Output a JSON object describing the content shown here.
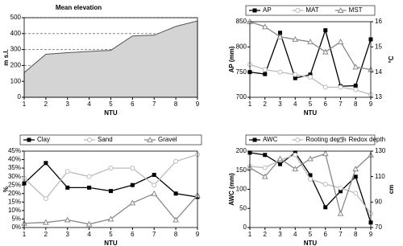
{
  "chart_data": [
    {
      "type": "area",
      "title": "Mean elevation",
      "xlabel": "NTU",
      "ylabel": "m s.l.",
      "x": [
        1,
        2,
        3,
        4,
        5,
        6,
        7,
        8,
        9
      ],
      "xlim": [
        1,
        9
      ],
      "xticks": [
        1,
        2,
        3,
        4,
        5,
        6,
        7,
        8,
        9
      ],
      "ylim": [
        0,
        500
      ],
      "yticks": [
        0,
        100,
        200,
        300,
        400,
        500
      ],
      "grid": true,
      "series": [
        {
          "name": "Mean elevation",
          "color": "#d4d4d4",
          "values": [
            155,
            270,
            280,
            288,
            295,
            385,
            390,
            445,
            480
          ]
        }
      ]
    },
    {
      "type": "line",
      "xlabel": "NTU",
      "ylabel": "AP (mm)",
      "y2label": "°C",
      "x": [
        1,
        2,
        3,
        4,
        5,
        6,
        7,
        8,
        9
      ],
      "xlim": [
        1,
        9
      ],
      "xticks": [
        1,
        2,
        3,
        4,
        5,
        6,
        7,
        8,
        9
      ],
      "ylim": [
        700,
        850
      ],
      "yticks": [
        700,
        750,
        800,
        850
      ],
      "y2lim": [
        13,
        16
      ],
      "y2ticks": [
        13,
        14,
        15,
        16
      ],
      "series": [
        {
          "name": "AP",
          "color": "#000000",
          "marker": "square",
          "values": [
            750,
            746,
            828,
            738,
            745,
            833,
            722,
            723,
            815
          ]
        },
        {
          "name": "MAT",
          "color": "#bbbbbb",
          "marker": "circle",
          "axis": "y2",
          "values": [
            14.3,
            14.1,
            14.0,
            13.9,
            13.8,
            13.4,
            13.4,
            13.3,
            13.1
          ]
        },
        {
          "name": "MST",
          "color": "#888888",
          "marker": "triangle",
          "axis": "y2",
          "values": [
            16.0,
            15.8,
            15.4,
            15.3,
            15.2,
            14.8,
            15.2,
            14.2,
            14.1
          ]
        }
      ]
    },
    {
      "type": "line",
      "xlabel": "NTU",
      "ylabel": "%",
      "x": [
        1,
        2,
        3,
        4,
        5,
        6,
        7,
        8,
        9
      ],
      "xlim": [
        1,
        9
      ],
      "xticks": [
        1,
        2,
        3,
        4,
        5,
        6,
        7,
        8,
        9
      ],
      "ylim": [
        0,
        45
      ],
      "yticks": [
        {
          "value": 0,
          "label": "0%"
        },
        {
          "value": 5,
          "label": "5%"
        },
        {
          "value": 10,
          "label": "10%"
        },
        {
          "value": 15,
          "label": "15%"
        },
        {
          "value": 20,
          "label": "20%"
        },
        {
          "value": 25,
          "label": "25%"
        },
        {
          "value": 30,
          "label": "30%"
        },
        {
          "value": 35,
          "label": "35%"
        },
        {
          "value": 40,
          "label": "40%"
        },
        {
          "value": 45,
          "label": "45%"
        }
      ],
      "series": [
        {
          "name": "Clay",
          "color": "#000000",
          "marker": "square",
          "values": [
            26,
            38,
            23.5,
            23.5,
            21.5,
            25,
            31,
            20,
            18
          ]
        },
        {
          "name": "Sand",
          "color": "#bbbbbb",
          "marker": "circle",
          "values": [
            29,
            17,
            33,
            30,
            35,
            35,
            25,
            39,
            43
          ]
        },
        {
          "name": "Gravel",
          "color": "#888888",
          "marker": "triangle",
          "values": [
            2.5,
            3,
            4.5,
            2,
            5,
            14.5,
            20,
            4.5,
            19
          ]
        }
      ]
    },
    {
      "type": "line",
      "xlabel": "NTU",
      "ylabel": "AWC (mm)",
      "y2label": "cm",
      "x": [
        1,
        2,
        3,
        4,
        5,
        6,
        7,
        8,
        9
      ],
      "xlim": [
        1,
        9
      ],
      "xticks": [
        1,
        2,
        3,
        4,
        5,
        6,
        7,
        8,
        9
      ],
      "ylim": [
        0,
        200
      ],
      "yticks": [
        0,
        50,
        100,
        150,
        200
      ],
      "y2lim": [
        70,
        130
      ],
      "y2ticks": [
        70,
        90,
        110,
        130
      ],
      "series": [
        {
          "name": "AWC",
          "color": "#000000",
          "marker": "square",
          "values": [
            196,
            190,
            166,
            196,
            137,
            53,
            95,
            133,
            13
          ]
        },
        {
          "name": "Rooting depth",
          "color": "#bbbbbb",
          "marker": "circle",
          "axis": "y2",
          "values": [
            118,
            117,
            123,
            127,
            108,
            104,
            101,
            97,
            81
          ]
        },
        {
          "name": "Redox depth",
          "color": "#888888",
          "marker": "triangle",
          "axis": "y2",
          "values": [
            117,
            110,
            124,
            116,
            124,
            128,
            81,
            116,
            127
          ]
        }
      ]
    }
  ]
}
